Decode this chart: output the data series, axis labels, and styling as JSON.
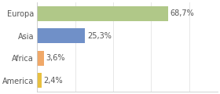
{
  "categories": [
    "America",
    "Africa",
    "Asia",
    "Europa"
  ],
  "values": [
    2.4,
    3.6,
    25.3,
    68.7
  ],
  "labels": [
    "2,4%",
    "3,6%",
    "25,3%",
    "68,7%"
  ],
  "bar_colors": [
    "#e8c040",
    "#f0a868",
    "#7090c8",
    "#b0c888"
  ],
  "background_color": "#ffffff",
  "xlim": [
    0,
    95
  ],
  "label_fontsize": 7.0,
  "category_fontsize": 7.0,
  "bar_height": 0.65
}
